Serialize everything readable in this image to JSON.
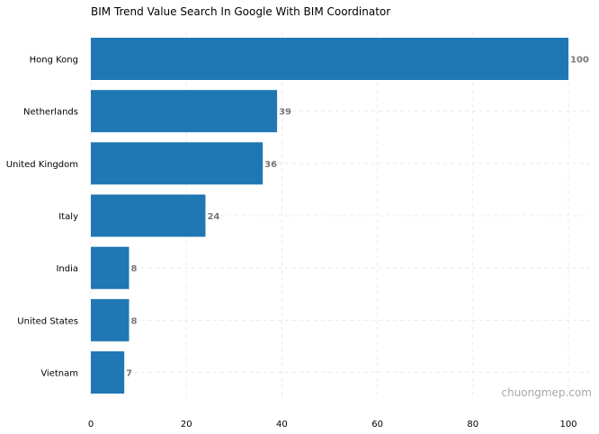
{
  "chart_data": {
    "type": "bar",
    "orientation": "horizontal",
    "title": "BIM Trend Value Search In Google With BIM Coordinator",
    "xlabel": "",
    "ylabel": "",
    "categories": [
      "Hong Kong",
      "Netherlands",
      "United Kingdom",
      "Italy",
      "India",
      "United States",
      "Vietnam"
    ],
    "values": [
      100,
      39,
      36,
      24,
      8,
      8,
      7
    ],
    "xlim": [
      0,
      100
    ],
    "xticks": [
      0,
      20,
      40,
      60,
      80,
      100
    ],
    "grid": true,
    "bar_color": "#1f77b4",
    "value_label_color": "#7a7a7a",
    "watermark": "chuongmep.com"
  }
}
